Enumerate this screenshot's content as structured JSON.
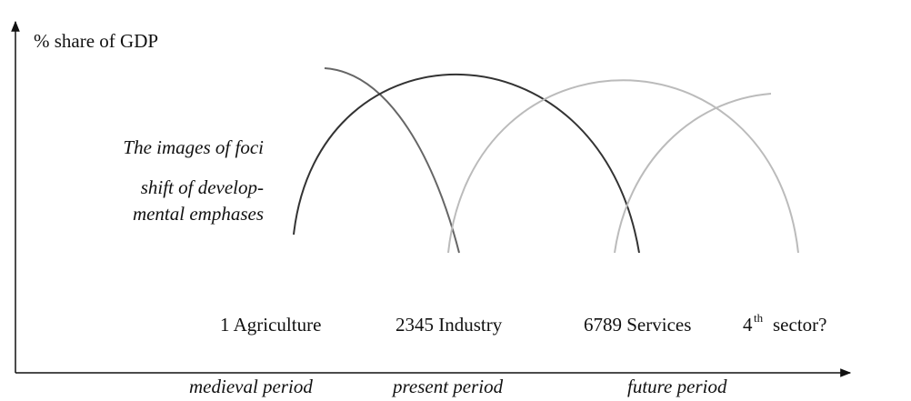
{
  "axis": {
    "y_label": "% share of GDP"
  },
  "notes": [
    "The images of foci",
    "shift of develop-",
    "mental emphases"
  ],
  "sectors": [
    {
      "label": "1 Agriculture"
    },
    {
      "label": "2345 Industry"
    },
    {
      "label": "6789 Services"
    },
    {
      "number": "4",
      "suffix": "th",
      "rest": "sector?"
    }
  ],
  "periods": [
    "medieval period",
    "present period",
    "future period"
  ]
}
